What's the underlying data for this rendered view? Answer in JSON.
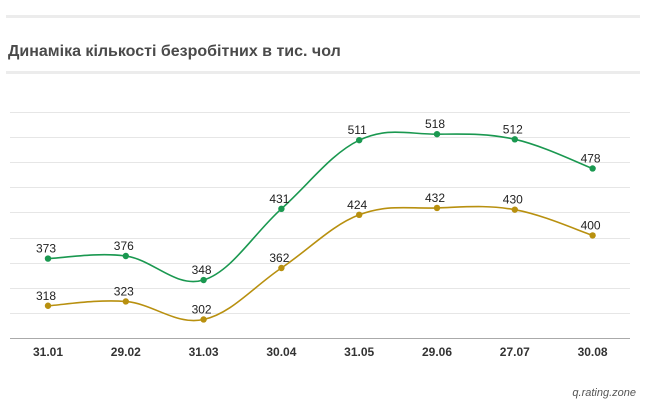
{
  "title": "Динаміка кількості безробітних в тис. чол",
  "credit": "q.rating.zone",
  "colors": {
    "green": "#1a9850",
    "gold": "#b8900f",
    "grid": "#e6e6e6",
    "axis": "#aaaaaa"
  },
  "chart_data": {
    "type": "line",
    "title": "Динаміка кількості безробітних в тис. чол",
    "categories": [
      "31.01",
      "29.02",
      "31.03",
      "30.04",
      "31.05",
      "29.06",
      "27.07",
      "30.08"
    ],
    "series": [
      {
        "color": "#1a9850",
        "values": [
          373,
          376,
          348,
          431,
          511,
          518,
          512,
          478
        ]
      },
      {
        "color": "#b8900f",
        "values": [
          318,
          323,
          302,
          362,
          424,
          432,
          430,
          400
        ]
      }
    ],
    "ylim": [
      295,
      535
    ],
    "grid": true,
    "legend": "none"
  }
}
